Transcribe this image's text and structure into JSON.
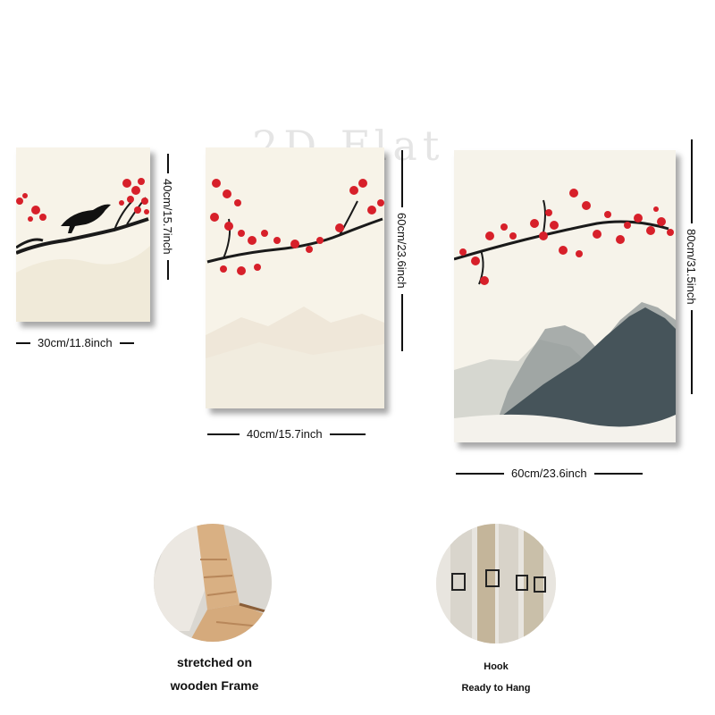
{
  "watermark": "2D Flat",
  "panels": [
    {
      "name": "small",
      "width_label": "30cm/11.8inch",
      "height_label": "40cm/15.7inch"
    },
    {
      "name": "medium",
      "width_label": "40cm/15.7inch",
      "height_label": "60cm/23.6inch"
    },
    {
      "name": "large",
      "width_label": "60cm/23.6inch",
      "height_label": "80cm/31.5inch"
    }
  ],
  "features": {
    "frame": {
      "line1": "stretched on",
      "line2": "wooden Frame"
    },
    "hook": {
      "line1": "Hook",
      "line2": "Ready to Hang"
    }
  },
  "colors": {
    "canvas": "#f7f3e8",
    "blossom": "#d7202a",
    "branch": "#1a1a1a",
    "mountain": "#46545a"
  }
}
